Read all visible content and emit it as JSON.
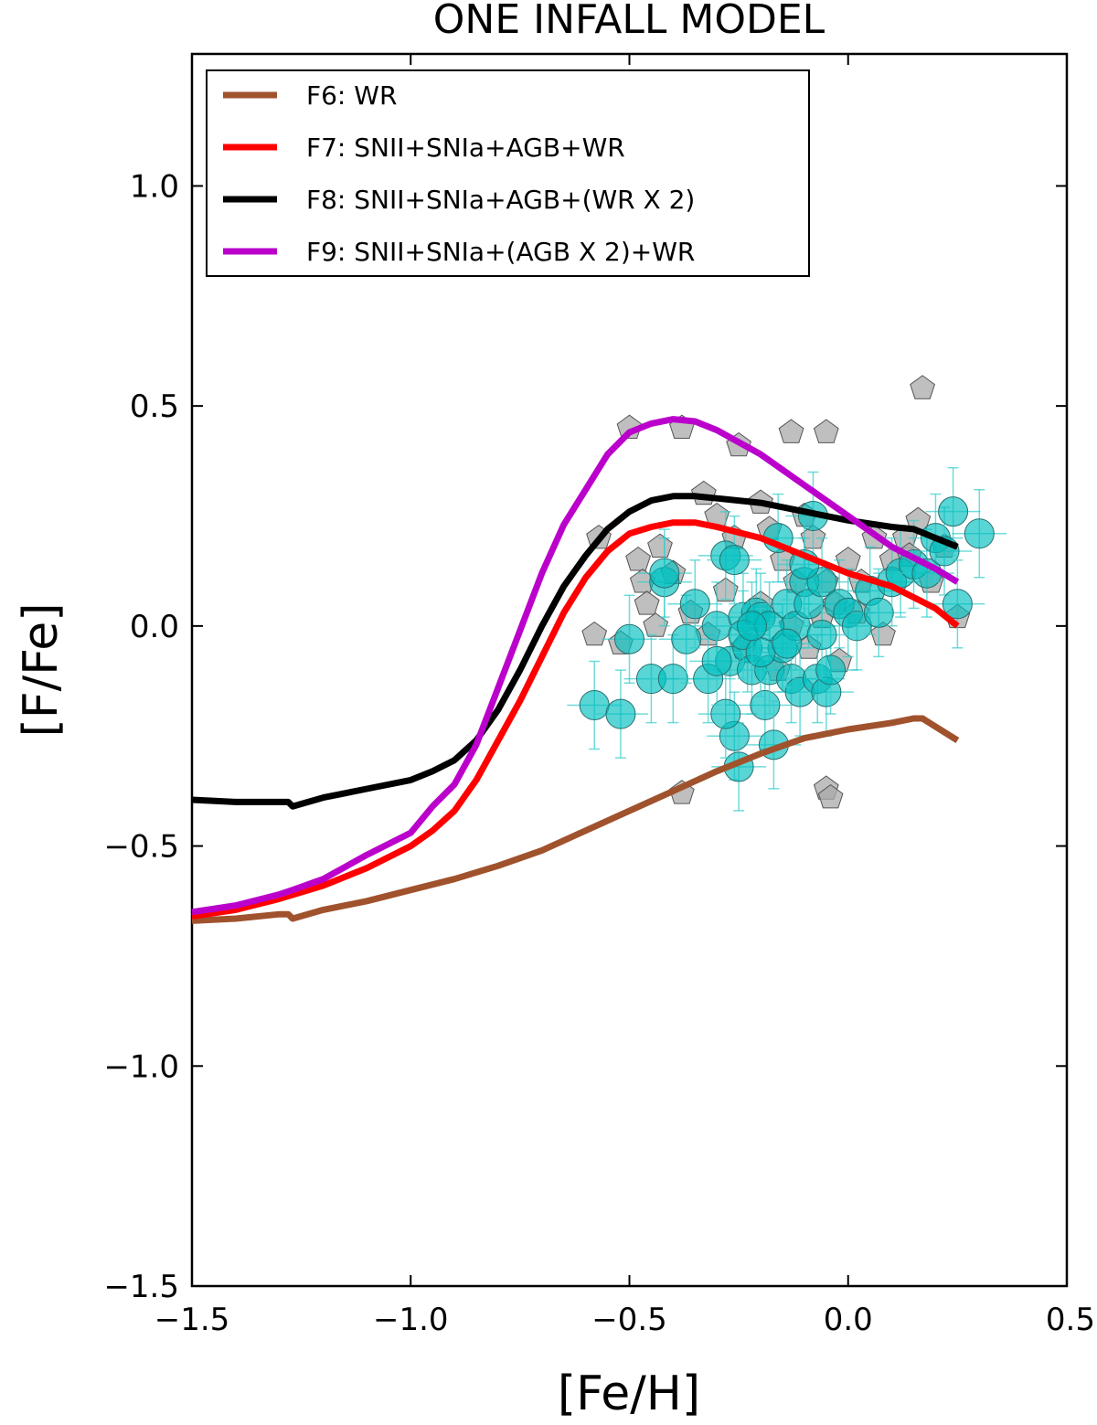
{
  "chart_data": {
    "type": "line",
    "title": "ONE INFALL MODEL",
    "xlabel": "[Fe/H]",
    "ylabel": "[F/Fe]",
    "xlim": [
      -1.5,
      0.5
    ],
    "ylim": [
      -1.5,
      1.3
    ],
    "xticks": [
      -1.5,
      -1.0,
      -0.5,
      0.0,
      0.5
    ],
    "yticks": [
      -1.5,
      -1.0,
      -0.5,
      0.0,
      0.5,
      1.0
    ],
    "xtick_labels": [
      "−1.5",
      "−1.0",
      "−0.5",
      "0.0",
      "0.5"
    ],
    "ytick_labels": [
      "−1.5",
      "−1.0",
      "−0.5",
      "0.0",
      "0.5",
      "1.0"
    ],
    "legend_position": "top-left",
    "grid": false,
    "series": [
      {
        "name": "F6: WR",
        "color": "#a0522d",
        "x": [
          -1.5,
          -1.4,
          -1.3,
          -1.28,
          -1.27,
          -1.2,
          -1.1,
          -1.0,
          -0.9,
          -0.8,
          -0.7,
          -0.6,
          -0.5,
          -0.4,
          -0.3,
          -0.2,
          -0.1,
          0.0,
          0.1,
          0.15,
          0.17,
          0.25
        ],
        "y": [
          -0.67,
          -0.665,
          -0.655,
          -0.655,
          -0.665,
          -0.645,
          -0.625,
          -0.6,
          -0.575,
          -0.545,
          -0.51,
          -0.465,
          -0.42,
          -0.375,
          -0.33,
          -0.29,
          -0.255,
          -0.235,
          -0.22,
          -0.21,
          -0.21,
          -0.26
        ]
      },
      {
        "name": "F7: SNII+SNIa+AGB+WR",
        "color": "#ff0000",
        "x": [
          -1.5,
          -1.4,
          -1.3,
          -1.2,
          -1.1,
          -1.0,
          -0.95,
          -0.9,
          -0.85,
          -0.8,
          -0.75,
          -0.7,
          -0.65,
          -0.6,
          -0.55,
          -0.5,
          -0.45,
          -0.4,
          -0.35,
          -0.3,
          -0.2,
          -0.1,
          0.0,
          0.1,
          0.2,
          0.25
        ],
        "y": [
          -0.66,
          -0.645,
          -0.62,
          -0.59,
          -0.55,
          -0.5,
          -0.465,
          -0.42,
          -0.35,
          -0.26,
          -0.17,
          -0.07,
          0.03,
          0.11,
          0.17,
          0.21,
          0.225,
          0.235,
          0.235,
          0.225,
          0.2,
          0.16,
          0.12,
          0.09,
          0.04,
          0.0
        ]
      },
      {
        "name": "F8: SNII+SNIa+AGB+(WR X 2)",
        "color": "#000000",
        "x": [
          -1.5,
          -1.4,
          -1.3,
          -1.28,
          -1.27,
          -1.2,
          -1.1,
          -1.0,
          -0.95,
          -0.9,
          -0.85,
          -0.8,
          -0.75,
          -0.7,
          -0.65,
          -0.6,
          -0.55,
          -0.5,
          -0.45,
          -0.4,
          -0.35,
          -0.3,
          -0.2,
          -0.1,
          0.0,
          0.1,
          0.15,
          0.2,
          0.25
        ],
        "y": [
          -0.395,
          -0.4,
          -0.4,
          -0.4,
          -0.41,
          -0.39,
          -0.37,
          -0.35,
          -0.33,
          -0.305,
          -0.26,
          -0.19,
          -0.1,
          0.0,
          0.09,
          0.16,
          0.22,
          0.26,
          0.285,
          0.295,
          0.295,
          0.29,
          0.28,
          0.26,
          0.24,
          0.225,
          0.22,
          0.2,
          0.18
        ]
      },
      {
        "name": "F9: SNII+SNIa+(AGB X 2)+WR",
        "color": "#bb00cc",
        "x": [
          -1.5,
          -1.4,
          -1.3,
          -1.27,
          -1.2,
          -1.1,
          -1.0,
          -0.95,
          -0.9,
          -0.85,
          -0.8,
          -0.75,
          -0.7,
          -0.65,
          -0.6,
          -0.55,
          -0.5,
          -0.45,
          -0.4,
          -0.35,
          -0.3,
          -0.2,
          -0.1,
          0.0,
          0.1,
          0.2,
          0.25
        ],
        "y": [
          -0.65,
          -0.635,
          -0.61,
          -0.6,
          -0.575,
          -0.52,
          -0.47,
          -0.41,
          -0.36,
          -0.27,
          -0.14,
          -0.01,
          0.12,
          0.23,
          0.31,
          0.39,
          0.44,
          0.46,
          0.47,
          0.465,
          0.445,
          0.39,
          0.32,
          0.25,
          0.18,
          0.13,
          0.1
        ]
      }
    ],
    "scatter_sets": [
      {
        "name": "gray-pentagons",
        "color": "#a9a9a9",
        "marker": "pentagon",
        "x": [
          -0.5,
          -0.38,
          -0.25,
          -0.13,
          -0.05,
          0.17,
          -0.57,
          -0.48,
          -0.47,
          -0.46,
          -0.43,
          -0.33,
          -0.3,
          -0.26,
          -0.2,
          -0.18,
          -0.15,
          -0.12,
          -0.1,
          -0.08,
          -0.05,
          -0.03,
          0.0,
          0.03,
          0.06,
          0.1,
          0.13,
          0.16,
          0.19,
          0.22,
          0.25,
          -0.44,
          -0.4,
          -0.36,
          -0.32,
          -0.28,
          -0.24,
          -0.2,
          -0.16,
          -0.13,
          -0.09,
          -0.06,
          -0.02,
          0.02,
          0.08,
          0.14,
          -0.58,
          -0.52,
          -0.38,
          -0.05,
          -0.04
        ],
        "y": [
          0.45,
          0.45,
          0.41,
          0.44,
          0.44,
          0.54,
          0.2,
          0.15,
          0.1,
          0.05,
          0.18,
          0.3,
          0.25,
          0.2,
          0.28,
          0.22,
          0.15,
          0.1,
          0.25,
          0.2,
          0.1,
          0.05,
          0.15,
          0.1,
          0.2,
          0.15,
          0.2,
          0.24,
          0.1,
          0.18,
          0.02,
          0.0,
          0.12,
          0.03,
          -0.02,
          0.08,
          -0.05,
          0.05,
          -0.1,
          0.0,
          -0.05,
          0.02,
          -0.08,
          0.03,
          -0.02,
          0.16,
          -0.02,
          -0.04,
          -0.38,
          -0.37,
          -0.39
        ]
      },
      {
        "name": "cyan-circles",
        "color": "#00bfbf",
        "marker": "circle",
        "errorbars": true,
        "x": [
          -0.58,
          -0.52,
          -0.5,
          -0.45,
          -0.42,
          -0.4,
          -0.37,
          -0.35,
          -0.32,
          -0.3,
          -0.28,
          -0.27,
          -0.26,
          -0.25,
          -0.24,
          -0.23,
          -0.22,
          -0.21,
          -0.2,
          -0.19,
          -0.18,
          -0.17,
          -0.16,
          -0.15,
          -0.14,
          -0.13,
          -0.12,
          -0.11,
          -0.1,
          -0.09,
          -0.08,
          -0.07,
          -0.06,
          -0.05,
          -0.04,
          -0.02,
          0.0,
          0.02,
          0.05,
          0.07,
          0.1,
          0.12,
          0.15,
          0.18,
          0.2,
          0.22,
          0.24,
          0.25,
          0.3,
          -0.42,
          -0.28,
          -0.26,
          -0.24,
          -0.18,
          -0.2,
          -0.1,
          -0.06,
          -0.14,
          -0.22,
          -0.3
        ],
        "y": [
          -0.18,
          -0.2,
          -0.03,
          -0.12,
          0.1,
          -0.12,
          -0.03,
          0.05,
          -0.12,
          0.0,
          0.16,
          -0.08,
          -0.25,
          -0.32,
          0.02,
          -0.05,
          -0.1,
          0.03,
          0.02,
          -0.18,
          -0.1,
          -0.27,
          0.2,
          -0.05,
          0.05,
          -0.12,
          0.0,
          -0.15,
          0.1,
          0.05,
          0.25,
          -0.12,
          0.1,
          -0.15,
          -0.1,
          0.05,
          0.03,
          0.0,
          0.08,
          0.03,
          0.1,
          0.12,
          0.14,
          0.12,
          0.2,
          0.17,
          0.26,
          0.05,
          0.21,
          0.12,
          -0.2,
          0.15,
          -0.02,
          0.0,
          -0.06,
          0.14,
          -0.02,
          -0.04,
          0.0,
          -0.08
        ]
      }
    ]
  }
}
